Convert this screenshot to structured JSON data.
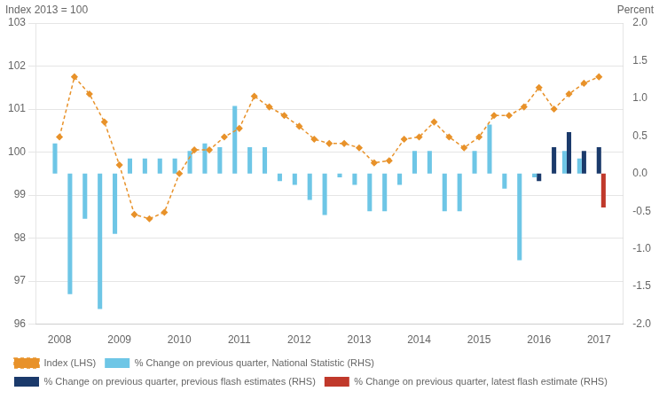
{
  "chart_data": {
    "type": "bar",
    "ylabel": "Index 2013 = 100",
    "y2label": "Percent",
    "xlim": [
      2007.6,
      2017.4
    ],
    "xticks": [
      2008,
      2009,
      2010,
      2011,
      2012,
      2013,
      2014,
      2015,
      2016,
      2017
    ],
    "ylim": [
      96,
      103
    ],
    "yticks": [
      96,
      97,
      98,
      99,
      100,
      101,
      102,
      103
    ],
    "y2lim": [
      -2.0,
      2.0
    ],
    "y2ticks": [
      {
        "value": -2.0,
        "label": "-2.0"
      },
      -1.5,
      {
        "value": -1.0,
        "label": "-1.0"
      },
      -0.5,
      {
        "value": 0.0,
        "label": "0.0"
      },
      0.5,
      {
        "value": 1.0,
        "label": "1.0"
      },
      1.5,
      {
        "value": 2.0,
        "label": "2.0"
      }
    ],
    "grid": true,
    "legend": "lower left",
    "series": [
      {
        "name": "% Change on previous quarter, National Statistic (RHS)",
        "type": "bar",
        "axis": "y2",
        "color": "#6EC6E6",
        "x": [
          2008.0,
          2008.25,
          2008.5,
          2008.75,
          2009.0,
          2009.25,
          2009.5,
          2009.75,
          2010.0,
          2010.25,
          2010.5,
          2010.75,
          2011.0,
          2011.25,
          2011.5,
          2011.75,
          2012.0,
          2012.25,
          2012.5,
          2012.75,
          2013.0,
          2013.25,
          2013.5,
          2013.75,
          2014.0,
          2014.25,
          2014.5,
          2014.75,
          2015.0,
          2015.25,
          2015.5,
          2015.75,
          2016.0,
          2016.5,
          2016.75
        ],
        "values": [
          0.4,
          -1.6,
          -0.6,
          -1.8,
          -0.8,
          0.2,
          0.2,
          0.2,
          0.2,
          0.3,
          0.4,
          0.35,
          0.9,
          0.35,
          0.35,
          -0.1,
          -0.15,
          -0.35,
          -0.55,
          -0.05,
          -0.15,
          -0.5,
          -0.5,
          -0.15,
          0.3,
          0.3,
          -0.5,
          -0.5,
          0.3,
          0.65,
          -0.2,
          -1.15,
          -0.05,
          0.3,
          0.2
        ]
      },
      {
        "name": "% Change on previous quarter, previous flash estimates (RHS)",
        "type": "bar",
        "axis": "y2",
        "color": "#1B3A6B",
        "x": [
          2016.0,
          2016.25,
          2016.5,
          2016.75,
          2017.0
        ],
        "values": [
          -0.1,
          0.35,
          0.55,
          0.3,
          0.35
        ]
      },
      {
        "name": "% Change on previous quarter, latest flash estimate (RHS)",
        "type": "bar",
        "axis": "y2",
        "color": "#C0392B",
        "x": [
          2017.0
        ],
        "values": [
          -0.45
        ]
      },
      {
        "name": "Index (LHS)",
        "type": "line",
        "axis": "y",
        "color": "#E8922A",
        "marker": "diamond",
        "line_style": "dashed",
        "x": [
          2008.0,
          2008.25,
          2008.5,
          2008.75,
          2009.0,
          2009.25,
          2009.5,
          2009.75,
          2010.0,
          2010.25,
          2010.5,
          2010.75,
          2011.0,
          2011.25,
          2011.5,
          2011.75,
          2012.0,
          2012.25,
          2012.5,
          2012.75,
          2013.0,
          2013.25,
          2013.5,
          2013.75,
          2014.0,
          2014.25,
          2014.5,
          2014.75,
          2015.0,
          2015.25,
          2015.5,
          2015.75,
          2016.0,
          2016.25,
          2016.5,
          2016.75,
          2017.0
        ],
        "values": [
          100.35,
          101.75,
          101.35,
          100.7,
          99.7,
          98.55,
          98.45,
          98.6,
          99.5,
          100.05,
          100.05,
          100.35,
          100.55,
          101.3,
          101.05,
          100.85,
          100.6,
          100.3,
          100.2,
          100.2,
          100.1,
          99.75,
          99.8,
          100.3,
          100.35,
          100.7,
          100.35,
          100.1,
          100.35,
          100.85,
          100.85,
          101.05,
          101.5,
          101.0,
          101.35,
          101.6,
          101.75
        ]
      }
    ]
  }
}
